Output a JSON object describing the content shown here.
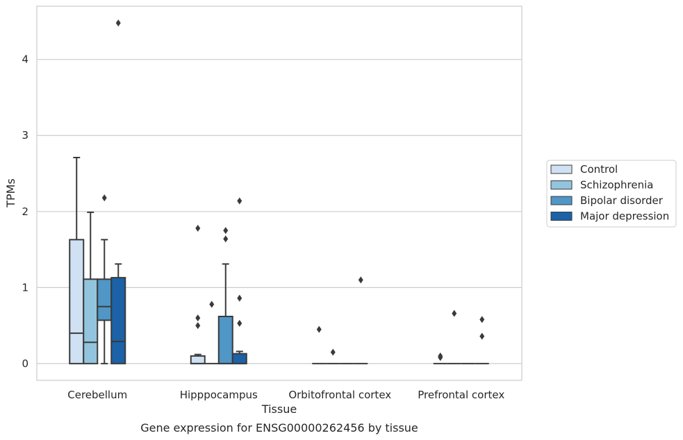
{
  "chart_data": {
    "type": "box",
    "title": "",
    "caption": "Gene expression for ENSG00000262456 by tissue",
    "xlabel": "Tissue",
    "ylabel": "TPMs",
    "ylim": [
      -0.22,
      4.7
    ],
    "yticks": [
      0,
      1,
      2,
      3,
      4
    ],
    "grid": "horizontal",
    "legend_position": "right",
    "categories": [
      "Cerebellum",
      "Hipppocampus",
      "Orbitofrontal cortex",
      "Prefrontal cortex"
    ],
    "series": [
      {
        "name": "Control",
        "color": "#cfe1f2",
        "boxes": [
          {
            "q1": 0,
            "median": 0.4,
            "q3": 1.63,
            "whislo": 0,
            "whishi": 2.71,
            "fliers": []
          },
          {
            "q1": 0,
            "median": 0.0,
            "q3": 0.1,
            "whislo": 0,
            "whishi": 0.12,
            "fliers": [
              0.5,
              0.6,
              1.78
            ]
          },
          {
            "q1": 0,
            "median": 0,
            "q3": 0,
            "whislo": 0,
            "whishi": 0,
            "fliers": [
              0.45
            ]
          },
          {
            "q1": 0,
            "median": 0,
            "q3": 0,
            "whislo": 0,
            "whishi": 0,
            "fliers": [
              0.08,
              0.1
            ]
          }
        ]
      },
      {
        "name": "Schizophrenia",
        "color": "#93c4de",
        "boxes": [
          {
            "q1": 0,
            "median": 0.28,
            "q3": 1.11,
            "whislo": 0,
            "whishi": 1.99,
            "fliers": []
          },
          {
            "q1": 0,
            "median": 0,
            "q3": 0,
            "whislo": 0,
            "whishi": 0,
            "fliers": [
              0.78
            ]
          },
          {
            "q1": 0,
            "median": 0,
            "q3": 0,
            "whislo": 0,
            "whishi": 0,
            "fliers": [
              0.15
            ]
          },
          {
            "q1": 0,
            "median": 0,
            "q3": 0,
            "whislo": 0,
            "whishi": 0,
            "fliers": [
              0.66
            ]
          }
        ]
      },
      {
        "name": "Bipolar disorder",
        "color": "#5096c6",
        "boxes": [
          {
            "q1": 0.57,
            "median": 0.75,
            "q3": 1.11,
            "whislo": 0,
            "whishi": 1.63,
            "fliers": [
              2.18
            ]
          },
          {
            "q1": 0,
            "median": 0,
            "q3": 0.62,
            "whislo": 0,
            "whishi": 1.31,
            "fliers": [
              1.64,
              1.75
            ]
          },
          {
            "q1": 0,
            "median": 0,
            "q3": 0,
            "whislo": 0,
            "whishi": 0,
            "fliers": []
          },
          {
            "q1": 0,
            "median": 0,
            "q3": 0,
            "whislo": 0,
            "whishi": 0,
            "fliers": []
          }
        ]
      },
      {
        "name": "Major depression",
        "color": "#1b62a8",
        "boxes": [
          {
            "q1": 0,
            "median": 0.29,
            "q3": 1.13,
            "whislo": 0,
            "whishi": 1.31,
            "fliers": [
              4.48
            ]
          },
          {
            "q1": 0,
            "median": 0,
            "q3": 0.13,
            "whislo": 0,
            "whishi": 0.16,
            "fliers": [
              0.53,
              0.86,
              2.14
            ]
          },
          {
            "q1": 0,
            "median": 0,
            "q3": 0,
            "whislo": 0,
            "whishi": 0,
            "fliers": [
              1.1
            ]
          },
          {
            "q1": 0,
            "median": 0,
            "q3": 0,
            "whislo": 0,
            "whishi": 0,
            "fliers": [
              0.36,
              0.58
            ]
          }
        ]
      }
    ]
  }
}
